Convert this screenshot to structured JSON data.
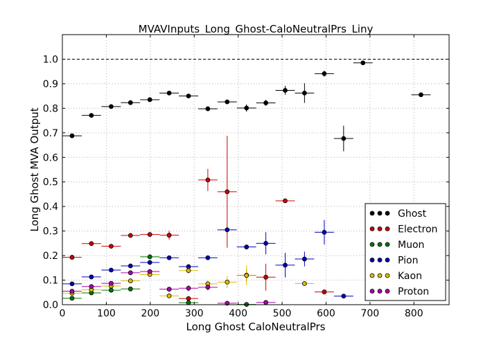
{
  "chart_data": {
    "type": "scatter",
    "title": "MVAVInputs_Long_Ghost-CaloNeutralPrs_Liny",
    "xlabel": "Long Ghost CaloNeutralPrs",
    "ylabel": "Long Ghost MVA Output",
    "xlim": [
      0,
      880
    ],
    "ylim": [
      0,
      1.1
    ],
    "x_ticks": [
      0,
      100,
      200,
      300,
      400,
      500,
      600,
      700,
      800
    ],
    "y_ticks": [
      0.0,
      0.1,
      0.2,
      0.3,
      0.4,
      0.5,
      0.6,
      0.7,
      0.8,
      0.9,
      1.0
    ],
    "reference_line_y": 1.0,
    "grid": true,
    "legend_position": "lower-right",
    "series": [
      {
        "name": "Ghost",
        "color": "#000000",
        "points": [
          {
            "x": 22,
            "y": 0.688,
            "xerr": 22,
            "yerr": 0.004
          },
          {
            "x": 66,
            "y": 0.771,
            "xerr": 22,
            "yerr": 0.004
          },
          {
            "x": 111,
            "y": 0.807,
            "xerr": 22,
            "yerr": 0.004
          },
          {
            "x": 155,
            "y": 0.823,
            "xerr": 22,
            "yerr": 0.005
          },
          {
            "x": 199,
            "y": 0.835,
            "xerr": 22,
            "yerr": 0.005
          },
          {
            "x": 243,
            "y": 0.862,
            "xerr": 22,
            "yerr": 0.006
          },
          {
            "x": 287,
            "y": 0.85,
            "xerr": 22,
            "yerr": 0.006
          },
          {
            "x": 331,
            "y": 0.798,
            "xerr": 22,
            "yerr": 0.007
          },
          {
            "x": 375,
            "y": 0.826,
            "xerr": 22,
            "yerr": 0.008
          },
          {
            "x": 419,
            "y": 0.801,
            "xerr": 22,
            "yerr": 0.015
          },
          {
            "x": 463,
            "y": 0.822,
            "xerr": 22,
            "yerr": 0.012
          },
          {
            "x": 507,
            "y": 0.873,
            "xerr": 22,
            "yerr": 0.018
          },
          {
            "x": 551,
            "y": 0.862,
            "xerr": 22,
            "yerr": 0.04
          },
          {
            "x": 596,
            "y": 0.941,
            "xerr": 22,
            "yerr": 0.012
          },
          {
            "x": 640,
            "y": 0.677,
            "xerr": 22,
            "yerr": 0.052
          },
          {
            "x": 684,
            "y": 0.985,
            "xerr": 22,
            "yerr": 0.005
          },
          {
            "x": 816,
            "y": 0.855,
            "xerr": 22,
            "yerr": 0.008
          }
        ]
      },
      {
        "name": "Electron",
        "color": "#cc0000",
        "points": [
          {
            "x": 22,
            "y": 0.193,
            "xerr": 22,
            "yerr": 0.003
          },
          {
            "x": 66,
            "y": 0.249,
            "xerr": 22,
            "yerr": 0.004
          },
          {
            "x": 111,
            "y": 0.238,
            "xerr": 22,
            "yerr": 0.005
          },
          {
            "x": 155,
            "y": 0.282,
            "xerr": 22,
            "yerr": 0.006
          },
          {
            "x": 199,
            "y": 0.286,
            "xerr": 22,
            "yerr": 0.008
          },
          {
            "x": 243,
            "y": 0.283,
            "xerr": 22,
            "yerr": 0.018
          },
          {
            "x": 287,
            "y": 0.025,
            "xerr": 22,
            "yerr": 0.004
          },
          {
            "x": 331,
            "y": 0.508,
            "xerr": 22,
            "yerr": 0.045
          },
          {
            "x": 375,
            "y": 0.46,
            "xerr": 22,
            "yerr": 0.228
          },
          {
            "x": 419,
            "y": 0.12,
            "xerr": 22,
            "yerr": 0.025
          },
          {
            "x": 463,
            "y": 0.112,
            "xerr": 22,
            "yerr": 0.055
          },
          {
            "x": 507,
            "y": 0.423,
            "xerr": 22,
            "yerr": 0.003
          },
          {
            "x": 596,
            "y": 0.052,
            "xerr": 22,
            "yerr": 0.003
          }
        ]
      },
      {
        "name": "Muon",
        "color": "#007700",
        "points": [
          {
            "x": 22,
            "y": 0.026,
            "xerr": 22,
            "yerr": 0.004
          },
          {
            "x": 66,
            "y": 0.048,
            "xerr": 22,
            "yerr": 0.006
          },
          {
            "x": 111,
            "y": 0.059,
            "xerr": 22,
            "yerr": 0.006
          },
          {
            "x": 155,
            "y": 0.064,
            "xerr": 22,
            "yerr": 0.006
          },
          {
            "x": 199,
            "y": 0.195,
            "xerr": 22,
            "yerr": 0.008
          },
          {
            "x": 287,
            "y": 0.008,
            "xerr": 22,
            "yerr": 0.005
          },
          {
            "x": 419,
            "y": 0.001,
            "xerr": 22,
            "yerr": 0.002
          }
        ]
      },
      {
        "name": "Pion",
        "color": "#0000bb",
        "points": [
          {
            "x": 22,
            "y": 0.085,
            "xerr": 22,
            "yerr": 0.003
          },
          {
            "x": 66,
            "y": 0.113,
            "xerr": 22,
            "yerr": 0.003
          },
          {
            "x": 111,
            "y": 0.141,
            "xerr": 22,
            "yerr": 0.003
          },
          {
            "x": 155,
            "y": 0.158,
            "xerr": 22,
            "yerr": 0.004
          },
          {
            "x": 199,
            "y": 0.172,
            "xerr": 22,
            "yerr": 0.005
          },
          {
            "x": 243,
            "y": 0.191,
            "xerr": 22,
            "yerr": 0.005
          },
          {
            "x": 287,
            "y": 0.155,
            "xerr": 22,
            "yerr": 0.006
          },
          {
            "x": 331,
            "y": 0.191,
            "xerr": 22,
            "yerr": 0.006
          },
          {
            "x": 375,
            "y": 0.305,
            "xerr": 22,
            "yerr": 0.01
          },
          {
            "x": 419,
            "y": 0.235,
            "xerr": 22,
            "yerr": 0.01
          },
          {
            "x": 463,
            "y": 0.25,
            "xerr": 22,
            "yerr": 0.045
          },
          {
            "x": 507,
            "y": 0.161,
            "xerr": 22,
            "yerr": 0.05
          },
          {
            "x": 551,
            "y": 0.186,
            "xerr": 22,
            "yerr": 0.03
          },
          {
            "x": 596,
            "y": 0.295,
            "xerr": 22,
            "yerr": 0.05
          },
          {
            "x": 640,
            "y": 0.035,
            "xerr": 22,
            "yerr": 0.003
          }
        ]
      },
      {
        "name": "Kaon",
        "color": "#ddbb00",
        "points": [
          {
            "x": 22,
            "y": 0.047,
            "xerr": 22,
            "yerr": 0.004
          },
          {
            "x": 66,
            "y": 0.061,
            "xerr": 22,
            "yerr": 0.005
          },
          {
            "x": 111,
            "y": 0.076,
            "xerr": 22,
            "yerr": 0.005
          },
          {
            "x": 155,
            "y": 0.097,
            "xerr": 22,
            "yerr": 0.006
          },
          {
            "x": 199,
            "y": 0.123,
            "xerr": 22,
            "yerr": 0.008
          },
          {
            "x": 243,
            "y": 0.036,
            "xerr": 22,
            "yerr": 0.006
          },
          {
            "x": 287,
            "y": 0.139,
            "xerr": 22,
            "yerr": 0.012
          },
          {
            "x": 331,
            "y": 0.085,
            "xerr": 22,
            "yerr": 0.015
          },
          {
            "x": 375,
            "y": 0.092,
            "xerr": 22,
            "yerr": 0.025
          },
          {
            "x": 419,
            "y": 0.119,
            "xerr": 22,
            "yerr": 0.04
          },
          {
            "x": 551,
            "y": 0.086,
            "xerr": 22,
            "yerr": 0.005
          }
        ]
      },
      {
        "name": "Proton",
        "color": "#aa00aa",
        "points": [
          {
            "x": 22,
            "y": 0.055,
            "xerr": 22,
            "yerr": 0.004
          },
          {
            "x": 66,
            "y": 0.074,
            "xerr": 22,
            "yerr": 0.005
          },
          {
            "x": 111,
            "y": 0.087,
            "xerr": 22,
            "yerr": 0.005
          },
          {
            "x": 155,
            "y": 0.13,
            "xerr": 22,
            "yerr": 0.006
          },
          {
            "x": 199,
            "y": 0.135,
            "xerr": 22,
            "yerr": 0.008
          },
          {
            "x": 243,
            "y": 0.063,
            "xerr": 22,
            "yerr": 0.008
          },
          {
            "x": 287,
            "y": 0.067,
            "xerr": 22,
            "yerr": 0.012
          },
          {
            "x": 331,
            "y": 0.071,
            "xerr": 22,
            "yerr": 0.012
          },
          {
            "x": 375,
            "y": 0.006,
            "xerr": 22,
            "yerr": 0.003
          },
          {
            "x": 463,
            "y": 0.009,
            "xerr": 22,
            "yerr": 0.003
          }
        ]
      }
    ]
  }
}
